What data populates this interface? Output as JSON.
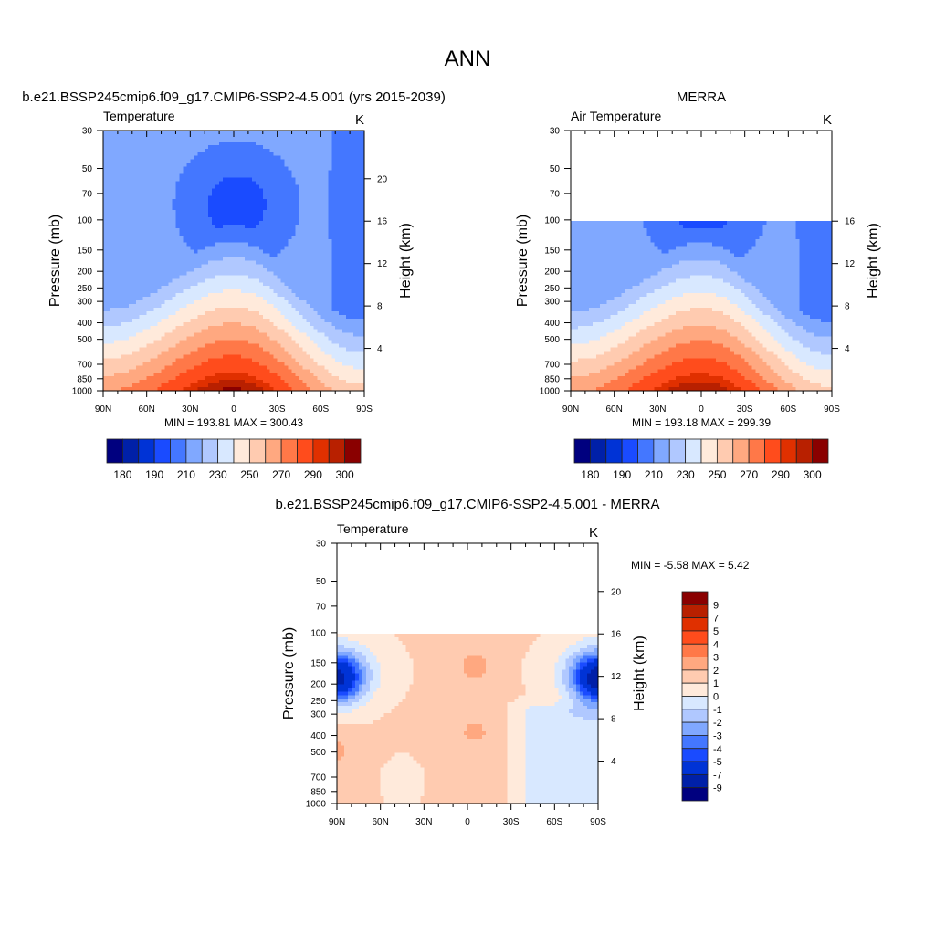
{
  "page_title": "ANN",
  "chart_data": [
    {
      "type": "heatmap",
      "id": "model",
      "title": "b.e21.BSSP245cmip6.f09_g17.CMIP6-SSP2-4.5.001 (yrs 2015-2039)",
      "left_label": "Temperature",
      "units": "K",
      "stats": "MIN = 193.81  MAX = 300.43",
      "min": 193.81,
      "max": 300.43,
      "xlabel": "",
      "ylabel": "Pressure (mb)",
      "ylabel_right": "Height (km)",
      "p_range": [
        1000,
        30
      ],
      "data_top_mb": 30,
      "x_ticks": [
        "90N",
        "60N",
        "30N",
        "0",
        "30S",
        "60S",
        "90S"
      ],
      "p_ticks": [
        30,
        50,
        70,
        100,
        150,
        200,
        250,
        300,
        400,
        500,
        700,
        850,
        1000
      ],
      "height_ticks": [
        4,
        8,
        12,
        16,
        20
      ],
      "levels": [
        180,
        185,
        190,
        200,
        210,
        220,
        230,
        240,
        250,
        260,
        270,
        280,
        290,
        295,
        300
      ],
      "colorbar_labels": [
        "180",
        "190",
        "210",
        "230",
        "250",
        "270",
        "290",
        "300"
      ],
      "field": "temperature"
    },
    {
      "type": "heatmap",
      "id": "obs",
      "title": "MERRA",
      "left_label": "Air Temperature",
      "units": "K",
      "stats": "MIN = 193.18  MAX = 299.39",
      "min": 193.18,
      "max": 299.39,
      "xlabel": "",
      "ylabel": "Pressure (mb)",
      "ylabel_right": "Height (km)",
      "p_range": [
        1000,
        30
      ],
      "data_top_mb": 100,
      "x_ticks": [
        "90N",
        "60N",
        "30N",
        "0",
        "30S",
        "60S",
        "90S"
      ],
      "p_ticks": [
        30,
        50,
        70,
        100,
        150,
        200,
        250,
        300,
        400,
        500,
        700,
        850,
        1000
      ],
      "height_ticks": [
        4,
        8,
        12,
        16
      ],
      "levels": [
        180,
        185,
        190,
        200,
        210,
        220,
        230,
        240,
        250,
        260,
        270,
        280,
        290,
        295,
        300
      ],
      "colorbar_labels": [
        "180",
        "190",
        "210",
        "230",
        "250",
        "270",
        "290",
        "300"
      ],
      "field": "temperature_obs"
    },
    {
      "type": "heatmap",
      "id": "diff",
      "title": "b.e21.BSSP245cmip6.f09_g17.CMIP6-SSP2-4.5.001 - MERRA",
      "left_label": "Temperature",
      "units": "K",
      "stats": "MIN =  -5.58  MAX =   5.42",
      "min": -5.58,
      "max": 5.42,
      "xlabel": "",
      "ylabel": "Pressure (mb)",
      "ylabel_right": "Height (km)",
      "p_range": [
        1000,
        30
      ],
      "data_top_mb": 100,
      "x_ticks": [
        "90N",
        "60N",
        "30N",
        "0",
        "30S",
        "60S",
        "90S"
      ],
      "p_ticks": [
        30,
        50,
        70,
        100,
        150,
        200,
        250,
        300,
        400,
        500,
        700,
        850,
        1000
      ],
      "height_ticks": [
        4,
        8,
        12,
        16,
        20
      ],
      "levels": [
        -9,
        -7,
        -5,
        -4,
        -3,
        -2,
        -1,
        0,
        1,
        2,
        3,
        4,
        5,
        7,
        9
      ],
      "colorbar_labels": [
        "-9",
        "-7",
        "-5",
        "-4",
        "-3",
        "-2",
        "-1",
        "0",
        "1",
        "2",
        "3",
        "4",
        "5",
        "7",
        "9"
      ],
      "field": "difference"
    }
  ],
  "palette": [
    "#00007f",
    "#0020a8",
    "#0033d6",
    "#1a4bff",
    "#4477ff",
    "#80a8ff",
    "#b0c8ff",
    "#d8e8ff",
    "#ffeadb",
    "#ffcbb0",
    "#ffa880",
    "#ff7848",
    "#ff4c1c",
    "#e03000",
    "#b82000",
    "#8a0000"
  ]
}
